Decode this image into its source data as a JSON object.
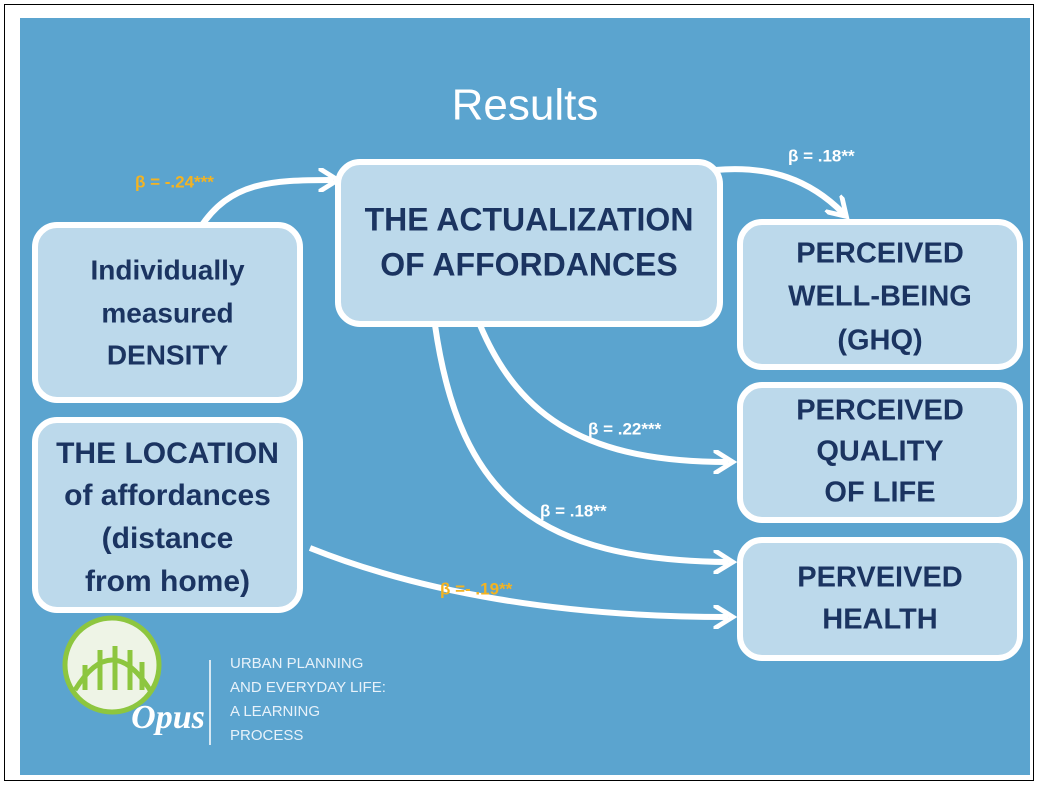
{
  "title": "Results",
  "nodes": [
    {
      "lines": [
        "Individually",
        "measured",
        "DENSITY"
      ]
    },
    {
      "lines": [
        "THE ACTUALIZATION",
        "OF AFFORDANCES"
      ]
    },
    {
      "lines": [
        "THE LOCATION",
        "of affordances",
        "(distance",
        "from home)"
      ]
    },
    {
      "lines": [
        "PERCEIVED",
        "WELL-BEING",
        "(GHQ)"
      ]
    },
    {
      "lines": [
        "PERCEIVED",
        "QUALITY",
        "OF LIFE"
      ]
    },
    {
      "lines": [
        "PERVEIVED",
        "HEALTH"
      ]
    }
  ],
  "edges": [
    {
      "label": "β = -.24***"
    },
    {
      "label": "β = .18**"
    },
    {
      "label": "β = .22***"
    },
    {
      "label": "β = .18**"
    },
    {
      "label": "β =- .19**"
    }
  ],
  "logo": {
    "name": "Opus",
    "lines": [
      "URBAN PLANNING",
      "AND EVERYDAY LIFE:",
      "A LEARNING",
      "PROCESS"
    ]
  }
}
